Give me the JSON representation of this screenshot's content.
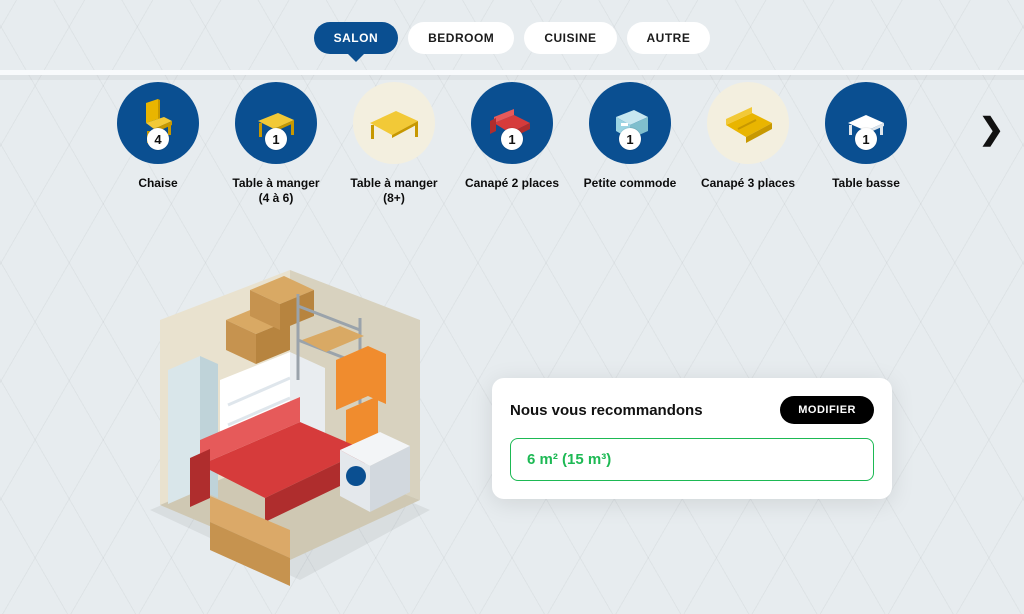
{
  "tabs": [
    {
      "id": "salon",
      "label": "SALON",
      "active": true
    },
    {
      "id": "bedroom",
      "label": "BEDROOM",
      "active": false
    },
    {
      "id": "cuisine",
      "label": "CUISINE",
      "active": false
    },
    {
      "id": "autre",
      "label": "AUTRE",
      "active": false
    }
  ],
  "items": [
    {
      "id": "chaise",
      "label": "Chaise",
      "count": 4,
      "circle": "blue",
      "icon": "chair"
    },
    {
      "id": "table-4-6",
      "label": "Table à manger\n(4 à 6)",
      "count": 1,
      "circle": "blue",
      "icon": "table-small"
    },
    {
      "id": "table-8",
      "label": "Table à manger\n(8+)",
      "count": null,
      "circle": "cream",
      "icon": "table-large"
    },
    {
      "id": "canape-2",
      "label": "Canapé 2 places",
      "count": 1,
      "circle": "blue",
      "icon": "sofa-2"
    },
    {
      "id": "petite-commode",
      "label": "Petite commode",
      "count": 1,
      "circle": "blue",
      "icon": "dresser"
    },
    {
      "id": "canape-3",
      "label": "Canapé 3 places",
      "count": null,
      "circle": "cream",
      "icon": "sofa-3"
    },
    {
      "id": "table-basse",
      "label": "Table basse",
      "count": 1,
      "circle": "blue",
      "icon": "coffee-table"
    }
  ],
  "recommendation": {
    "title": "Nous vous recommandons",
    "modify_label": "MODIFIER",
    "size_label": "6 m² (15 m³)"
  },
  "colors": {
    "blue": "#0a4f91",
    "gold": "#e9b500",
    "gold_dark": "#c79800",
    "red": "#d63b3b",
    "red_dark": "#af2d2d",
    "teal": "#9bd4e3",
    "cream": "#f3efdf",
    "green": "#1db954",
    "background": "#e9eef1"
  }
}
